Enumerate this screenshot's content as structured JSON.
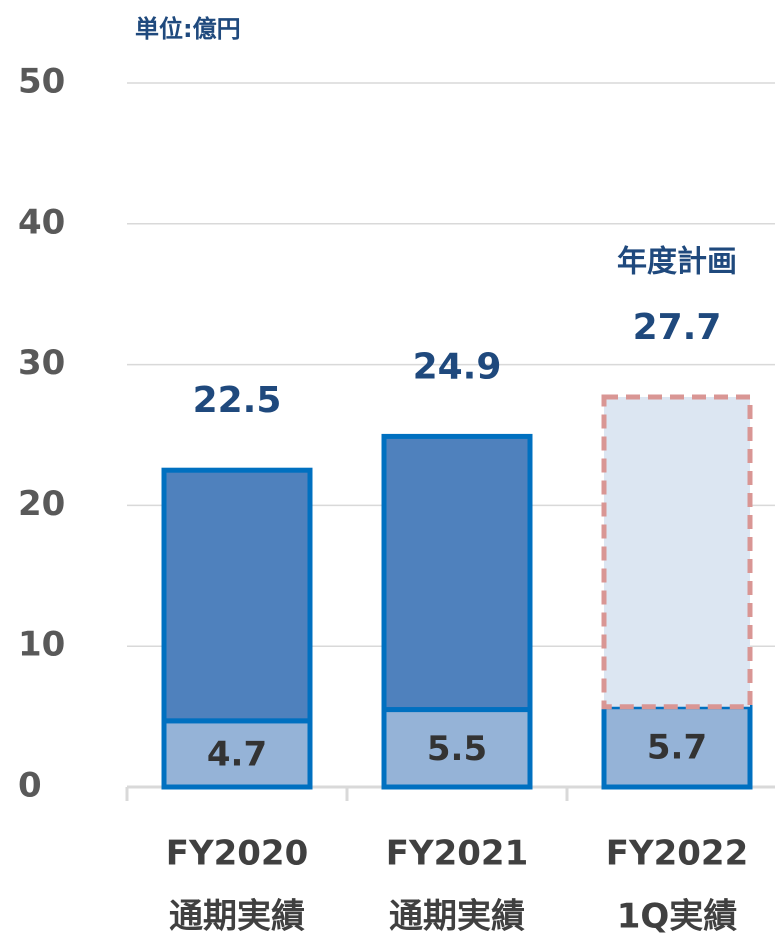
{
  "chart_data": {
    "type": "stacked_bar",
    "unit_label": "単位:億円",
    "categories": [
      "FY2020",
      "FY2021",
      "FY2022"
    ],
    "subcategories": [
      "通期実績",
      "通期実績",
      "1Q実績"
    ],
    "series": [
      {
        "values": [
          4.7,
          5.5,
          5.7
        ],
        "colors": [
          "#95b3d7",
          "#95b3d7",
          "#95b3d7"
        ],
        "edge_colors": [
          "#0070c0",
          "#0070c0",
          "#0070c0"
        ],
        "edge_styles": [
          "solid",
          "solid",
          "solid"
        ]
      },
      {
        "values": [
          17.8,
          19.4,
          22.0
        ],
        "colors": [
          "#4f81bd",
          "#4f81bd",
          "#dce6f2"
        ],
        "edge_colors": [
          "#0070c0",
          "#0070c0",
          "#d99694"
        ],
        "edge_styles": [
          "solid",
          "solid",
          "dashed"
        ]
      }
    ],
    "totals": [
      22.5,
      24.9,
      27.7
    ],
    "annotation": {
      "text": "年度計画",
      "category": 2
    },
    "ylim": [
      0,
      50
    ],
    "yticks": [
      0,
      10,
      20,
      30,
      40,
      50
    ],
    "grid": true
  }
}
